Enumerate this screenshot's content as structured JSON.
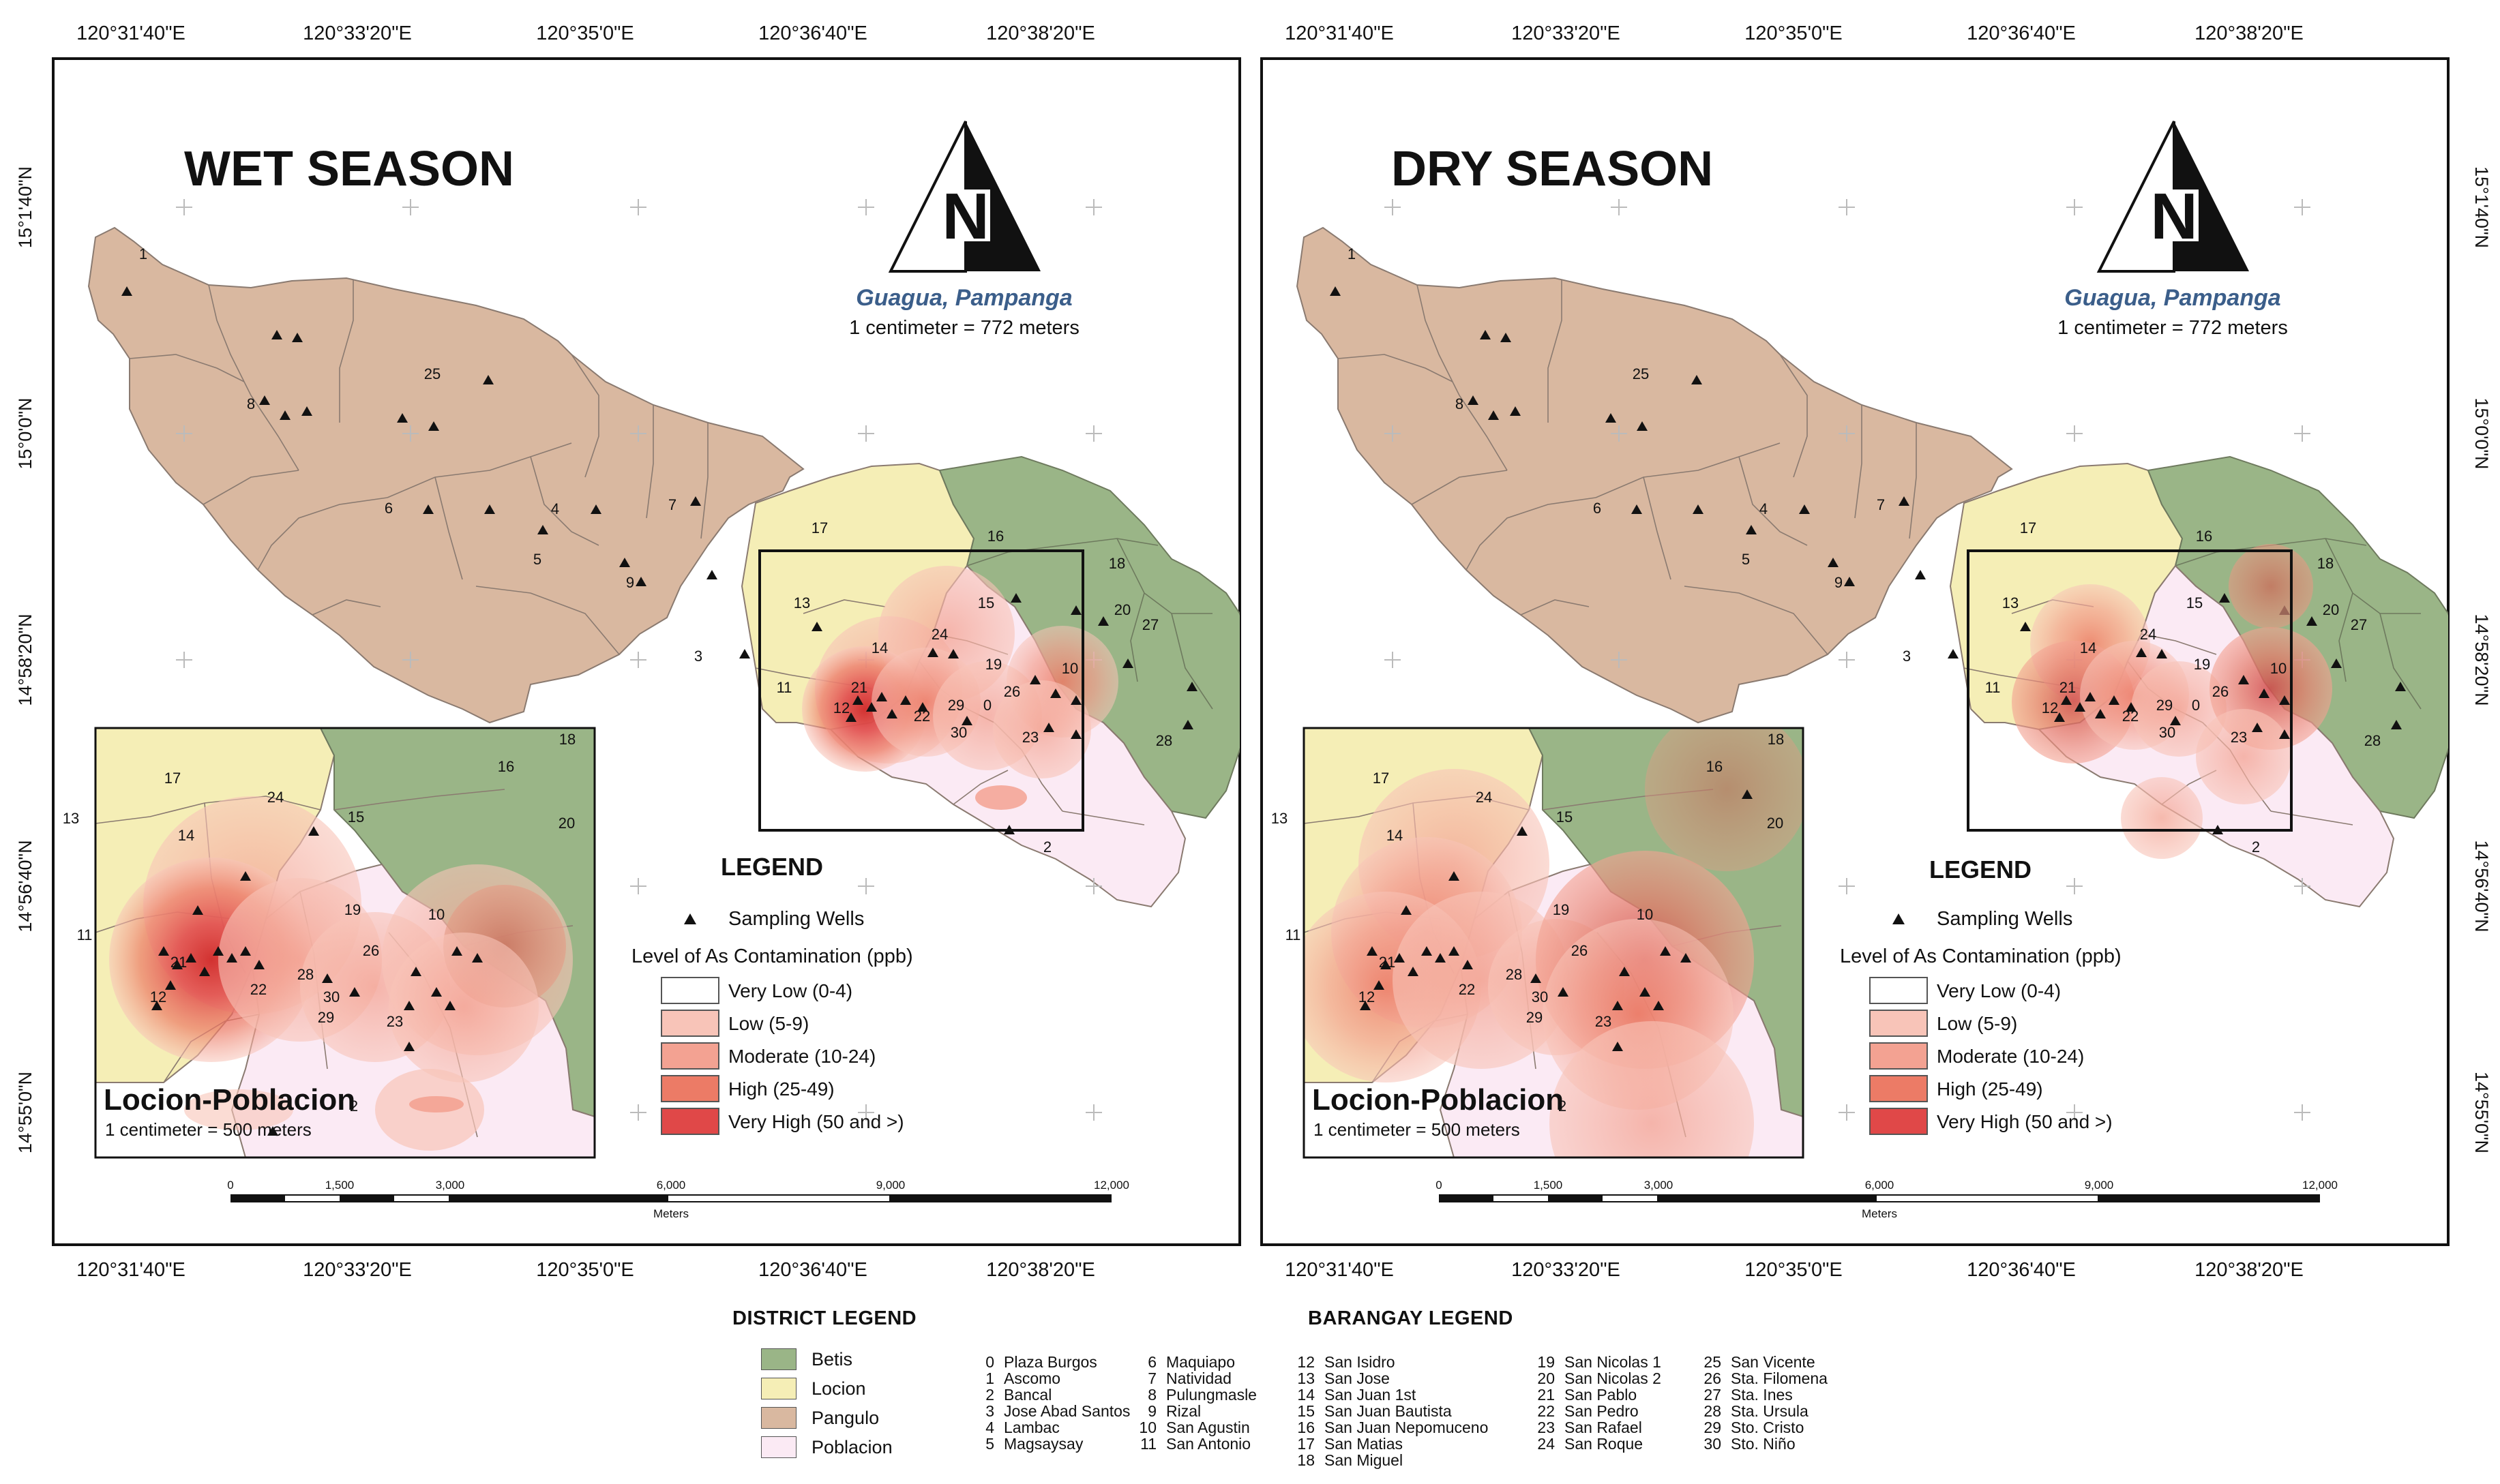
{
  "panels": [
    {
      "id": "wet",
      "title": "WET SEASON",
      "place": "Guagua, Pampanga",
      "scale_text": "1 centimeter = 772 meters",
      "inset_title": "Locion-Poblacion",
      "inset_scale": "1 centimeter = 500 meters"
    },
    {
      "id": "dry",
      "title": "DRY SEASON",
      "place": "Guagua, Pampanga",
      "scale_text": "1 centimeter = 772 meters",
      "inset_title": "Locion-Poblacion",
      "inset_scale": "1 centimeter = 500 meters"
    }
  ],
  "north_letter": "N",
  "longitudes_top": [
    "120°31'40\"E",
    "120°33'20\"E",
    "120°35'0\"E",
    "120°36'40\"E",
    "120°38'20\"E"
  ],
  "longitudes_bottom": [
    "120°31'40\"E",
    "120°33'20\"E",
    "120°35'0\"E",
    "120°36'40\"E",
    "120°38'20\"E"
  ],
  "latitudes": [
    "15°1'40\"N",
    "15°0'0\"N",
    "14°58'20\"N",
    "14°56'40\"N",
    "14°55'0\"N"
  ],
  "scalebar": {
    "ticks": [
      "0",
      "1,500",
      "3,000",
      "6,000",
      "9,000",
      "12,000"
    ],
    "unit": "Meters"
  },
  "legend": {
    "title": "LEGEND",
    "wells_label": "Sampling Wells",
    "level_title": "Level of As Contamination (ppb)",
    "levels": [
      {
        "label": "Very Low (0-4)",
        "color": "#ffffff"
      },
      {
        "label": "Low (5-9)",
        "color": "#f8c4b8"
      },
      {
        "label": "Moderate (10-24)",
        "color": "#f3a292"
      },
      {
        "label": "High (25-49)",
        "color": "#ec7b66"
      },
      {
        "label": "Very High (50 and >)",
        "color": "#e04848"
      }
    ]
  },
  "district_legend": {
    "title": "DISTRICT LEGEND",
    "items": [
      {
        "label": "Betis",
        "color": "#9ab587"
      },
      {
        "label": "Locion",
        "color": "#f5eeb6"
      },
      {
        "label": "Pangulo",
        "color": "#d9b8a0"
      },
      {
        "label": "Poblacion",
        "color": "#fbeaf4"
      }
    ]
  },
  "barangay_legend": {
    "title": "BARANGAY LEGEND",
    "columns": [
      [
        [
          "0",
          "Plaza Burgos"
        ],
        [
          "1",
          "Ascomo"
        ],
        [
          "2",
          "Bancal"
        ],
        [
          "3",
          "Jose Abad Santos"
        ],
        [
          "4",
          "Lambac"
        ],
        [
          "5",
          "Magsaysay"
        ]
      ],
      [
        [
          "6",
          "Maquiapo"
        ],
        [
          "7",
          "Natividad"
        ],
        [
          "8",
          "Pulungmasle"
        ],
        [
          "9",
          "Rizal"
        ],
        [
          "10",
          "San Agustin"
        ],
        [
          "11",
          "San Antonio"
        ]
      ],
      [
        [
          "12",
          "San Isidro"
        ],
        [
          "13",
          "San Jose"
        ],
        [
          "14",
          "San Juan 1st"
        ],
        [
          "15",
          "San Juan Bautista"
        ],
        [
          "16",
          "San Juan Nepomuceno"
        ],
        [
          "17",
          "San Matias"
        ],
        [
          "18",
          "San Miguel"
        ]
      ],
      [
        [
          "19",
          "San Nicolas 1"
        ],
        [
          "20",
          "San Nicolas 2"
        ],
        [
          "21",
          "San Pablo"
        ],
        [
          "22",
          "San Pedro"
        ],
        [
          "23",
          "San Rafael"
        ],
        [
          "24",
          "San Roque"
        ]
      ],
      [
        [
          "25",
          "San Vicente"
        ],
        [
          "26",
          "Sta. Filomena"
        ],
        [
          "27",
          "Sta. Ines"
        ],
        [
          "28",
          "Sta. Ursula"
        ],
        [
          "29",
          "Sto. Cristo"
        ],
        [
          "30",
          "Sto. Niño"
        ]
      ]
    ]
  },
  "map_labels": [
    "1",
    "8",
    "25",
    "6",
    "4",
    "7",
    "5",
    "9",
    "3",
    "17",
    "16",
    "18",
    "13",
    "15",
    "20",
    "14",
    "24",
    "27",
    "19",
    "10",
    "11",
    "21",
    "12",
    "22",
    "29",
    "0",
    "26",
    "30",
    "23",
    "28",
    "2"
  ],
  "inset_labels": [
    "17",
    "13",
    "14",
    "24",
    "15",
    "16",
    "18",
    "20",
    "11",
    "21",
    "12",
    "22",
    "19",
    "10",
    "26",
    "28",
    "30",
    "23",
    "29",
    "2"
  ],
  "colors": {
    "betis": "#9ab587",
    "locion": "#f5eeb6",
    "pangulo": "#d9b8a0",
    "poblacion": "#fbeaf4",
    "low": "#f8c4b8",
    "moderate": "#f3a292",
    "high": "#ec7b66",
    "veryhigh": "#e04848"
  }
}
